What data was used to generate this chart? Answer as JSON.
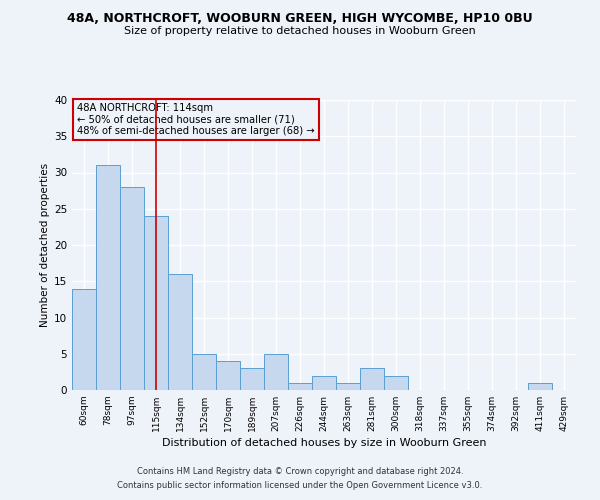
{
  "title": "48A, NORTHCROFT, WOOBURN GREEN, HIGH WYCOMBE, HP10 0BU",
  "subtitle": "Size of property relative to detached houses in Wooburn Green",
  "xlabel": "Distribution of detached houses by size in Wooburn Green",
  "ylabel": "Number of detached properties",
  "bar_labels": [
    "60sqm",
    "78sqm",
    "97sqm",
    "115sqm",
    "134sqm",
    "152sqm",
    "170sqm",
    "189sqm",
    "207sqm",
    "226sqm",
    "244sqm",
    "263sqm",
    "281sqm",
    "300sqm",
    "318sqm",
    "337sqm",
    "355sqm",
    "374sqm",
    "392sqm",
    "411sqm",
    "429sqm"
  ],
  "bar_values": [
    14,
    31,
    28,
    24,
    16,
    5,
    4,
    3,
    5,
    1,
    2,
    1,
    3,
    2,
    0,
    0,
    0,
    0,
    0,
    1,
    0
  ],
  "bar_color": "#c5d8ed",
  "bar_edge_color": "#5a9fd4",
  "vline_x_index": 3,
  "vline_color": "#cc0000",
  "annotation_line1": "48A NORTHCROFT: 114sqm",
  "annotation_line2": "← 50% of detached houses are smaller (71)",
  "annotation_line3": "48% of semi-detached houses are larger (68) →",
  "annotation_box_color": "#cc0000",
  "ylim": [
    0,
    40
  ],
  "yticks": [
    0,
    5,
    10,
    15,
    20,
    25,
    30,
    35,
    40
  ],
  "footnote1": "Contains HM Land Registry data © Crown copyright and database right 2024.",
  "footnote2": "Contains public sector information licensed under the Open Government Licence v3.0.",
  "bg_color": "#eef2f9"
}
